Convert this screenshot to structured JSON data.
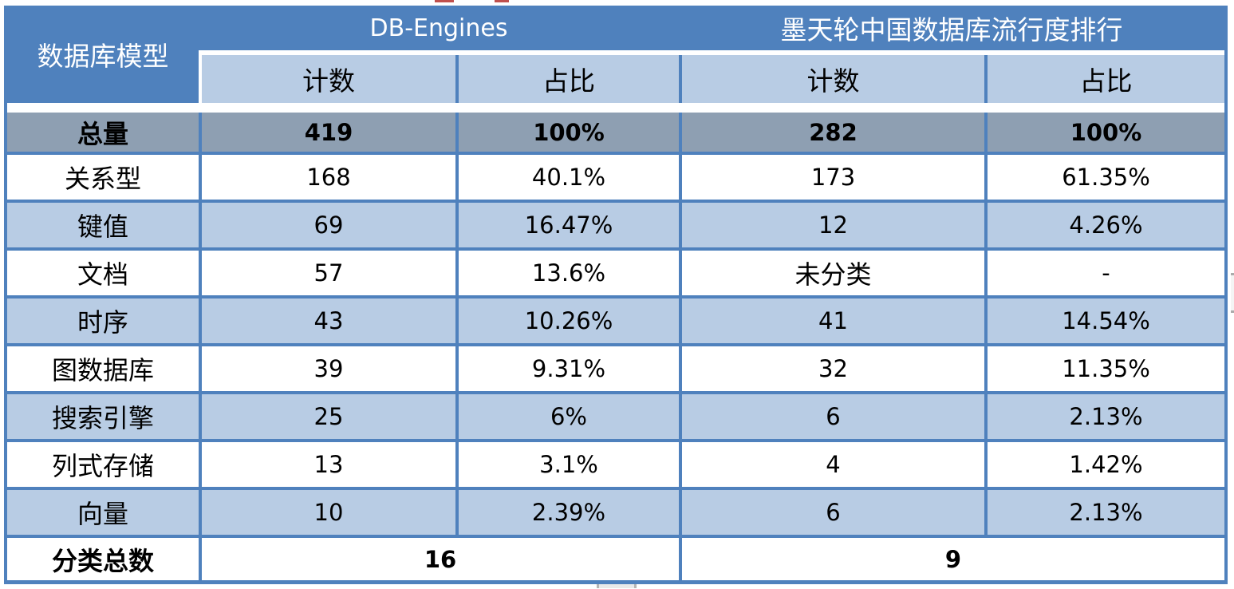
{
  "chart_data": {
    "type": "table",
    "corner_header": "数据库模型",
    "groups": [
      {
        "label": "DB-Engines",
        "sub": [
          "计数",
          "占比"
        ]
      },
      {
        "label": "墨天轮中国数据库流行度排行",
        "sub": [
          "计数",
          "占比"
        ]
      }
    ],
    "total_row": {
      "label": "总量",
      "db_count": "419",
      "db_pct": "100%",
      "mo_count": "282",
      "mo_pct": "100%"
    },
    "rows": [
      {
        "label": "关系型",
        "db_count": "168",
        "db_pct": "40.1%",
        "mo_count": "173",
        "mo_pct": "61.35%"
      },
      {
        "label": "键值",
        "db_count": "69",
        "db_pct": "16.47%",
        "mo_count": "12",
        "mo_pct": "4.26%"
      },
      {
        "label": "文档",
        "db_count": "57",
        "db_pct": "13.6%",
        "mo_count": "未分类",
        "mo_pct": "-"
      },
      {
        "label": "时序",
        "db_count": "43",
        "db_pct": "10.26%",
        "mo_count": "41",
        "mo_pct": "14.54%"
      },
      {
        "label": "图数据库",
        "db_count": "39",
        "db_pct": "9.31%",
        "mo_count": "32",
        "mo_pct": "11.35%"
      },
      {
        "label": "搜索引擎",
        "db_count": "25",
        "db_pct": "6%",
        "mo_count": "6",
        "mo_pct": "2.13%"
      },
      {
        "label": "列式存储",
        "db_count": "13",
        "db_pct": "3.1%",
        "mo_count": "4",
        "mo_pct": "1.42%"
      },
      {
        "label": "向量",
        "db_count": "10",
        "db_pct": "2.39%",
        "mo_count": "6",
        "mo_pct": "2.13%"
      }
    ],
    "footer_row": {
      "label": "分类总数",
      "db_total": "16",
      "mo_total": "9"
    }
  },
  "colors": {
    "header_blue": "#4f81bd",
    "light_blue": "#b8cce4",
    "total_row_gray": "#8e9fb2",
    "border_blue": "#4f81bd",
    "artifact_red": "#c0504d"
  }
}
